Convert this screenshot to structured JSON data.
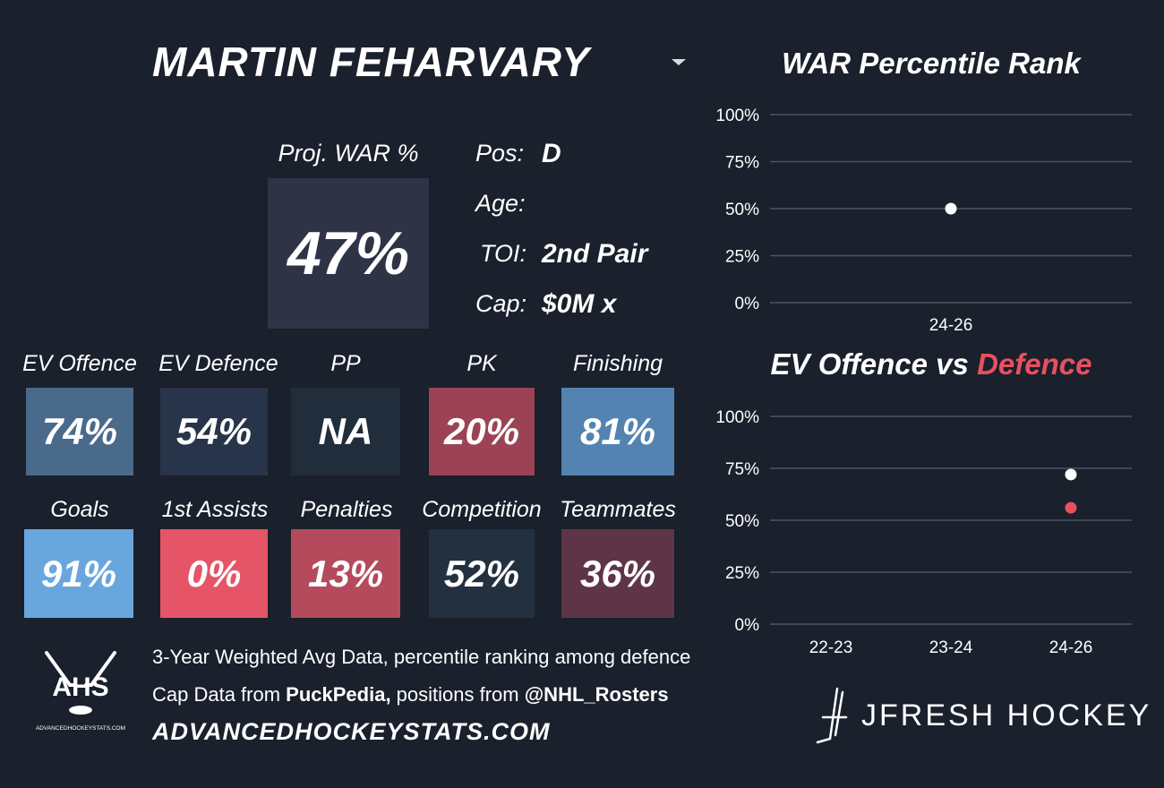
{
  "header": {
    "player_name": "MARTIN FEHARVARY"
  },
  "profile": {
    "proj_war_label": "Proj. WAR %",
    "proj_war_value": "47%",
    "pos_label": "Pos:",
    "pos_value": "D",
    "age_label": "Age:",
    "age_value": "",
    "toi_label": "TOI:",
    "toi_value": "2nd Pair",
    "cap_label": "Cap:",
    "cap_value": "$0M x"
  },
  "metrics": [
    {
      "label": "EV Offence",
      "value": "74%",
      "color": "#4a6a8c"
    },
    {
      "label": "EV Defence",
      "value": "54%",
      "color": "#27344a"
    },
    {
      "label": "PP",
      "value": "NA",
      "color": "#222d3c"
    },
    {
      "label": "PK",
      "value": "20%",
      "color": "#9b4354"
    },
    {
      "label": "Finishing",
      "value": "81%",
      "color": "#5583b1"
    },
    {
      "label": "Goals",
      "value": "91%",
      "color": "#69a6dd"
    },
    {
      "label": "1st Assists",
      "value": "0%",
      "color": "#e55567"
    },
    {
      "label": "Penalties",
      "value": "13%",
      "color": "#b54a5d"
    },
    {
      "label": "Competition",
      "value": "52%",
      "color": "#23303f"
    },
    {
      "label": "Teammates",
      "value": "36%",
      "color": "#5e3547"
    }
  ],
  "chart_data": [
    {
      "type": "scatter",
      "title": "WAR Percentile Rank",
      "categories": [
        "24-26"
      ],
      "series": [
        {
          "values": [
            50
          ],
          "color": "#ffffff"
        }
      ],
      "ylim": [
        0,
        100
      ],
      "yticks": [
        "100%",
        "75%",
        "50%",
        "25%",
        "0%"
      ],
      "grid": true
    },
    {
      "type": "scatter",
      "title_part1": "EV Offence vs ",
      "title_part2": "Defence",
      "categories": [
        "22-23",
        "23-24",
        "24-26"
      ],
      "series": [
        {
          "values": [
            null,
            null,
            72
          ],
          "color": "#ffffff"
        },
        {
          "values": [
            null,
            null,
            56
          ],
          "color": "#e8505f"
        }
      ],
      "ylim": [
        0,
        100
      ],
      "yticks": [
        "100%",
        "75%",
        "50%",
        "25%",
        "0%"
      ],
      "grid": true
    }
  ],
  "footer": {
    "logo_text": "AHS",
    "logo_url_text": "ADVANCEDHOCKEYSTATS.COM",
    "line1": "3-Year Weighted Avg Data, percentile ranking among defence",
    "line2_prefix": "Cap Data from ",
    "line2_puckpedia": "PuckPedia,",
    "line2_mid": " positions from ",
    "line2_handle": "@NHL_Rosters",
    "site": "ADVANCEDHOCKEYSTATS.COM",
    "brand": "JFRESH HOCKEY"
  },
  "colors": {
    "background": "#1a202c",
    "gridline": "#4a5568",
    "defence_accent": "#e8505f"
  }
}
